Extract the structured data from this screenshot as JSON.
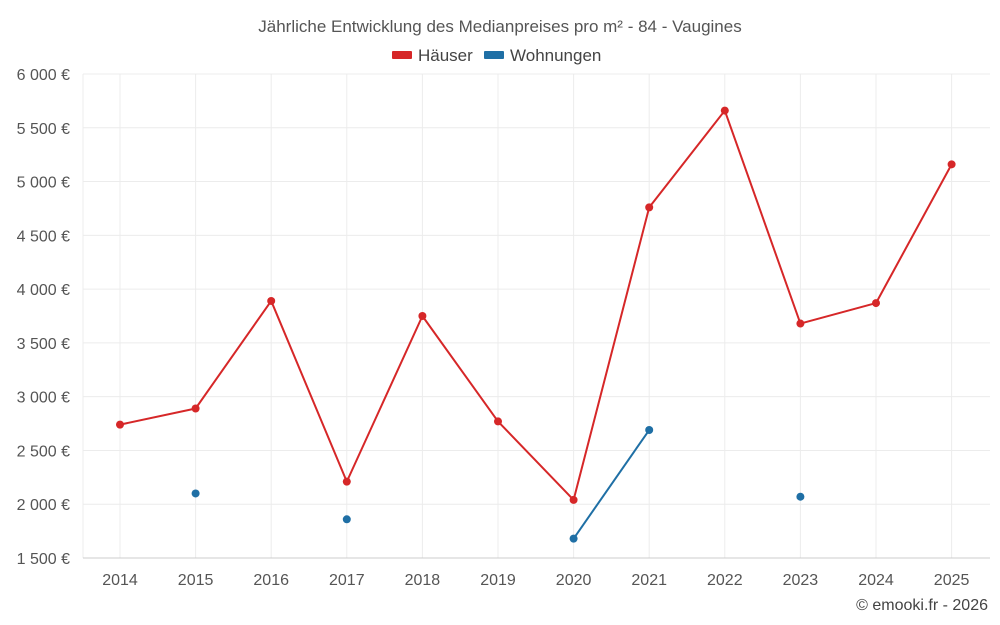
{
  "chart_data": {
    "type": "line",
    "title": "Jährliche Entwicklung des Medianpreises pro m² - 84 - Vaugines",
    "categories": [
      "2014",
      "2015",
      "2016",
      "2017",
      "2018",
      "2019",
      "2020",
      "2021",
      "2022",
      "2023",
      "2024",
      "2025"
    ],
    "ylim": [
      1500,
      6000
    ],
    "yticks": [
      1500,
      2000,
      2500,
      3000,
      3500,
      4000,
      4500,
      5000,
      5500,
      6000
    ],
    "ytick_labels": [
      "1 500 €",
      "2 000 €",
      "2 500 €",
      "3 000 €",
      "3 500 €",
      "4 000 €",
      "4 500 €",
      "5 000 €",
      "5 500 €",
      "6 000 €"
    ],
    "grid": true,
    "legend_position": "top-center",
    "series": [
      {
        "name": "Häuser",
        "color": "#d62728",
        "values": [
          2740,
          2890,
          3890,
          2210,
          3750,
          2770,
          2040,
          4760,
          5660,
          3680,
          3870,
          5160
        ]
      },
      {
        "name": "Wohnungen",
        "color": "#1f6fa5",
        "values": [
          null,
          2100,
          null,
          1860,
          null,
          null,
          1680,
          2690,
          null,
          2070,
          null,
          null
        ]
      }
    ]
  },
  "credit": "© emooki.fr - 2026"
}
